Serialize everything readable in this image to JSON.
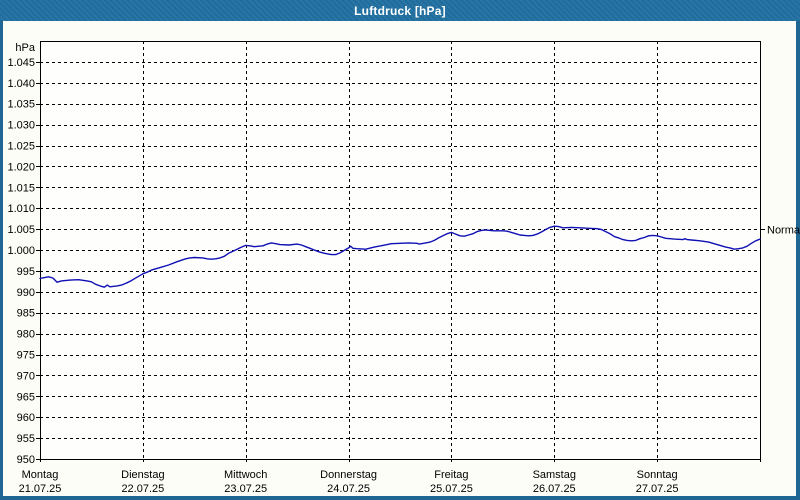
{
  "window": {
    "title": "Luftdruck [hPa]"
  },
  "colors": {
    "titlebar": "#2272a3",
    "window_border": "#1f6695",
    "content_bg": "#fdfdf8",
    "plot_bg": "#fefefc",
    "grid": "#000000",
    "text": "#000000",
    "curve": "#0f0fb4"
  },
  "chart_data": {
    "type": "line",
    "title": "Luftdruck [hPa]",
    "y_axis_unit_label": "hPa",
    "ylim": [
      950,
      1050
    ],
    "grid": "dashed",
    "legend_position": "none",
    "x_range_hours": [
      0,
      168
    ],
    "y_ticks": [
      {
        "value": 950,
        "label": "950"
      },
      {
        "value": 955,
        "label": "955"
      },
      {
        "value": 960,
        "label": "960"
      },
      {
        "value": 965,
        "label": "965"
      },
      {
        "value": 970,
        "label": "970"
      },
      {
        "value": 975,
        "label": "975"
      },
      {
        "value": 980,
        "label": "980"
      },
      {
        "value": 985,
        "label": "985"
      },
      {
        "value": 990,
        "label": "990"
      },
      {
        "value": 995,
        "label": "995"
      },
      {
        "value": 1000,
        "label": "1.000"
      },
      {
        "value": 1005,
        "label": "1.005"
      },
      {
        "value": 1010,
        "label": "1.010"
      },
      {
        "value": 1015,
        "label": "1.015"
      },
      {
        "value": 1020,
        "label": "1.020"
      },
      {
        "value": 1025,
        "label": "1.025"
      },
      {
        "value": 1030,
        "label": "1.030"
      },
      {
        "value": 1035,
        "label": "1.035"
      },
      {
        "value": 1040,
        "label": "1.040"
      },
      {
        "value": 1045,
        "label": "1.045"
      }
    ],
    "x_days": [
      {
        "name": "Montag",
        "date": "21.07.25"
      },
      {
        "name": "Dienstag",
        "date": "22.07.25"
      },
      {
        "name": "Mittwoch",
        "date": "23.07.25"
      },
      {
        "name": "Donnerstag",
        "date": "24.07.25"
      },
      {
        "name": "Freitag",
        "date": "25.07.25"
      },
      {
        "name": "Samstag",
        "date": "26.07.25"
      },
      {
        "name": "Sonntag",
        "date": "27.07.25"
      }
    ],
    "right_marker": {
      "label": "Normal",
      "value": 1005
    },
    "series": [
      {
        "name": "Luftdruck",
        "color": "#0f0fb4",
        "x_hours": [
          0,
          2,
          3,
          4,
          5,
          7,
          9,
          11,
          12,
          13,
          14,
          15,
          15.7,
          16.3,
          17,
          18,
          19,
          20,
          21,
          22,
          23,
          24,
          25,
          26,
          28,
          30,
          32,
          34,
          35,
          36,
          38,
          39,
          40,
          41,
          42,
          43,
          44,
          45,
          46,
          47,
          48,
          49,
          50,
          52,
          53,
          54,
          55,
          56,
          58,
          60,
          61,
          62,
          63,
          64,
          65,
          66,
          67,
          68,
          69,
          70,
          71,
          72,
          72.5,
          73,
          74,
          76,
          78,
          80,
          82,
          84,
          86,
          88,
          88.5,
          89,
          90,
          91,
          92,
          93,
          94,
          95,
          96,
          97,
          98,
          99,
          100,
          101,
          102,
          103,
          104,
          105,
          106,
          108,
          109,
          110,
          111,
          112,
          113,
          114,
          115,
          116,
          117,
          118,
          119,
          120,
          121,
          122,
          124,
          126,
          128,
          130,
          131,
          132,
          133,
          134,
          135,
          136,
          137,
          138,
          139,
          140,
          141,
          142,
          143,
          144,
          145,
          146,
          148,
          150,
          150.5,
          151,
          152,
          154,
          156,
          158,
          160,
          161,
          162,
          163,
          164,
          165,
          166,
          167,
          168
        ],
        "values": [
          993.2,
          993.6,
          993.3,
          992.3,
          992.6,
          992.8,
          992.9,
          992.6,
          992.4,
          991.8,
          991.4,
          991.1,
          991.6,
          991.2,
          991.3,
          991.4,
          991.6,
          992.0,
          992.5,
          993.1,
          993.7,
          994.3,
          994.7,
          995.2,
          995.8,
          996.4,
          997.2,
          997.9,
          998.1,
          998.2,
          998.1,
          997.9,
          997.8,
          997.9,
          998.1,
          998.5,
          999.2,
          999.7,
          1000.2,
          1000.7,
          1001.1,
          1001.0,
          1000.8,
          1001.0,
          1001.4,
          1001.7,
          1001.5,
          1001.3,
          1001.2,
          1001.4,
          1001.2,
          1000.8,
          1000.4,
          1000.0,
          999.6,
          999.3,
          999.1,
          998.9,
          998.9,
          999.3,
          999.9,
          1000.5,
          1000.9,
          1000.4,
          1000.3,
          1000.2,
          1000.7,
          1001.1,
          1001.5,
          1001.6,
          1001.7,
          1001.6,
          1001.4,
          1001.5,
          1001.7,
          1001.9,
          1002.3,
          1002.9,
          1003.4,
          1003.9,
          1004.2,
          1003.8,
          1003.4,
          1003.3,
          1003.6,
          1003.9,
          1004.4,
          1004.7,
          1004.8,
          1004.7,
          1004.6,
          1004.6,
          1004.5,
          1004.2,
          1003.9,
          1003.6,
          1003.5,
          1003.4,
          1003.5,
          1003.8,
          1004.3,
          1004.9,
          1005.4,
          1005.7,
          1005.6,
          1005.3,
          1005.4,
          1005.3,
          1005.2,
          1005.1,
          1004.9,
          1004.4,
          1003.9,
          1003.2,
          1002.9,
          1002.5,
          1002.3,
          1002.2,
          1002.3,
          1002.7,
          1003.0,
          1003.4,
          1003.5,
          1003.4,
          1003.1,
          1002.8,
          1002.6,
          1002.5,
          1002.7,
          1002.5,
          1002.4,
          1002.2,
          1001.9,
          1001.3,
          1000.7,
          1000.5,
          1000.2,
          1000.3,
          1000.5,
          1000.9,
          1001.6,
          1002.2,
          1002.6
        ]
      }
    ]
  }
}
